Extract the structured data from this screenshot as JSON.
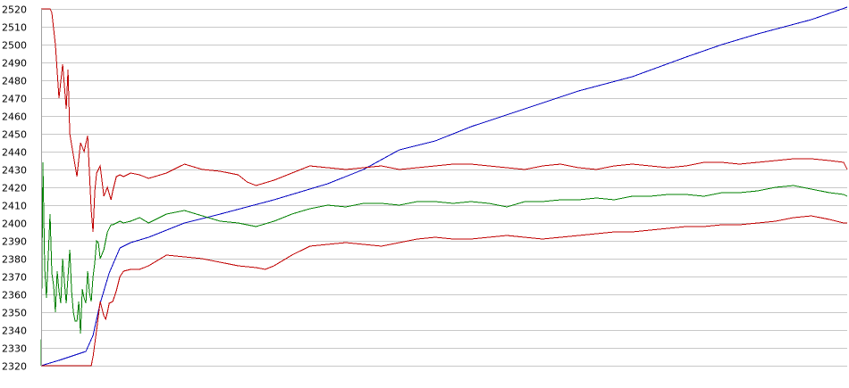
{
  "chart_data": {
    "type": "line",
    "title": "",
    "xlabel": "",
    "ylabel": "",
    "ylim": [
      2320,
      2520
    ],
    "xlim": [
      0,
      450
    ],
    "grid": true,
    "yticks": [
      2320,
      2330,
      2340,
      2350,
      2360,
      2370,
      2380,
      2390,
      2400,
      2410,
      2420,
      2430,
      2440,
      2450,
      2460,
      2470,
      2480,
      2490,
      2500,
      2510,
      2520
    ],
    "series": [
      {
        "color": "#0000c0",
        "x": [
          0,
          10,
          25,
          29,
          33,
          38,
          44,
          50,
          60,
          80,
          100,
          130,
          160,
          180,
          200,
          220,
          240,
          270,
          300,
          330,
          360,
          380,
          400,
          430,
          450
        ],
        "y": [
          2320,
          2323,
          2328,
          2337,
          2355,
          2372,
          2386,
          2389,
          2392,
          2400,
          2405,
          2413,
          2422,
          2430,
          2441,
          2446,
          2454,
          2464,
          2474,
          2482,
          2493,
          2500,
          2506,
          2514,
          2521
        ]
      },
      {
        "color": "#c00000",
        "x": [
          0,
          5,
          6,
          8,
          10,
          12,
          14,
          15,
          16,
          18,
          20,
          22,
          24,
          26,
          28,
          29,
          30,
          31,
          33,
          35,
          37,
          39,
          40,
          42,
          44,
          46,
          50,
          55,
          60,
          70,
          80,
          90,
          100,
          110,
          115,
          120,
          130,
          140,
          150,
          160,
          170,
          180,
          190,
          200,
          210,
          220,
          230,
          240,
          250,
          260,
          270,
          280,
          290,
          300,
          310,
          320,
          330,
          340,
          350,
          360,
          370,
          380,
          390,
          400,
          410,
          420,
          430,
          440,
          448,
          450
        ],
        "y": [
          2520,
          2520,
          2518,
          2500,
          2470,
          2489,
          2464,
          2486,
          2450,
          2438,
          2426,
          2445,
          2440,
          2449,
          2407,
          2395,
          2418,
          2428,
          2432,
          2415,
          2420,
          2413,
          2418,
          2426,
          2427,
          2426,
          2428,
          2427,
          2425,
          2428,
          2433,
          2430,
          2429,
          2427,
          2423,
          2421,
          2424,
          2428,
          2432,
          2431,
          2430,
          2431,
          2432,
          2430,
          2431,
          2432,
          2433,
          2433,
          2432,
          2431,
          2430,
          2432,
          2433,
          2431,
          2430,
          2432,
          2433,
          2432,
          2431,
          2432,
          2434,
          2434,
          2433,
          2434,
          2435,
          2436,
          2436,
          2435,
          2434,
          2430
        ]
      },
      {
        "color": "#008000",
        "x": [
          0,
          1,
          2,
          3,
          5,
          6,
          7,
          8,
          9,
          10,
          11,
          12,
          13,
          14,
          15,
          16,
          17,
          18,
          19,
          20,
          21,
          22,
          23,
          24,
          25,
          26,
          27,
          28,
          29,
          30,
          31,
          32,
          33,
          35,
          37,
          39,
          40,
          42,
          44,
          46,
          50,
          55,
          60,
          70,
          80,
          90,
          100,
          110,
          120,
          130,
          140,
          150,
          160,
          170,
          180,
          190,
          200,
          210,
          220,
          230,
          240,
          250,
          260,
          270,
          280,
          290,
          300,
          310,
          320,
          330,
          340,
          350,
          360,
          370,
          380,
          390,
          400,
          410,
          420,
          430,
          440,
          448,
          450
        ],
        "y": [
          2320,
          2434,
          2375,
          2358,
          2405,
          2372,
          2365,
          2350,
          2373,
          2362,
          2355,
          2380,
          2367,
          2355,
          2370,
          2385,
          2362,
          2350,
          2345,
          2345,
          2356,
          2338,
          2363,
          2358,
          2355,
          2373,
          2361,
          2356,
          2370,
          2378,
          2390,
          2389,
          2380,
          2385,
          2395,
          2399,
          2399,
          2400,
          2401,
          2400,
          2401,
          2403,
          2400,
          2405,
          2407,
          2404,
          2401,
          2400,
          2398,
          2401,
          2405,
          2408,
          2410,
          2409,
          2411,
          2411,
          2410,
          2412,
          2412,
          2411,
          2412,
          2411,
          2409,
          2412,
          2412,
          2413,
          2413,
          2414,
          2413,
          2415,
          2415,
          2416,
          2416,
          2415,
          2417,
          2417,
          2418,
          2420,
          2421,
          2419,
          2417,
          2416,
          2415
        ]
      },
      {
        "color": "#c00000",
        "x": [
          0,
          28,
          29,
          31,
          33,
          35,
          36,
          37,
          38,
          40,
          42,
          44,
          46,
          50,
          55,
          60,
          70,
          80,
          90,
          100,
          110,
          120,
          125,
          130,
          140,
          150,
          160,
          170,
          180,
          190,
          200,
          210,
          220,
          230,
          240,
          250,
          260,
          270,
          280,
          290,
          300,
          310,
          320,
          330,
          340,
          350,
          360,
          370,
          380,
          390,
          400,
          410,
          420,
          430,
          440,
          448,
          450
        ],
        "y": [
          2320,
          2320,
          2325,
          2340,
          2356,
          2348,
          2346,
          2350,
          2355,
          2356,
          2362,
          2370,
          2373,
          2374,
          2374,
          2376,
          2382,
          2381,
          2380,
          2378,
          2376,
          2375,
          2374,
          2376,
          2382,
          2387,
          2388,
          2389,
          2388,
          2387,
          2389,
          2391,
          2392,
          2391,
          2391,
          2392,
          2393,
          2392,
          2391,
          2392,
          2393,
          2394,
          2395,
          2395,
          2396,
          2397,
          2398,
          2398,
          2399,
          2399,
          2400,
          2401,
          2403,
          2404,
          2402,
          2400,
          2400
        ]
      }
    ]
  }
}
